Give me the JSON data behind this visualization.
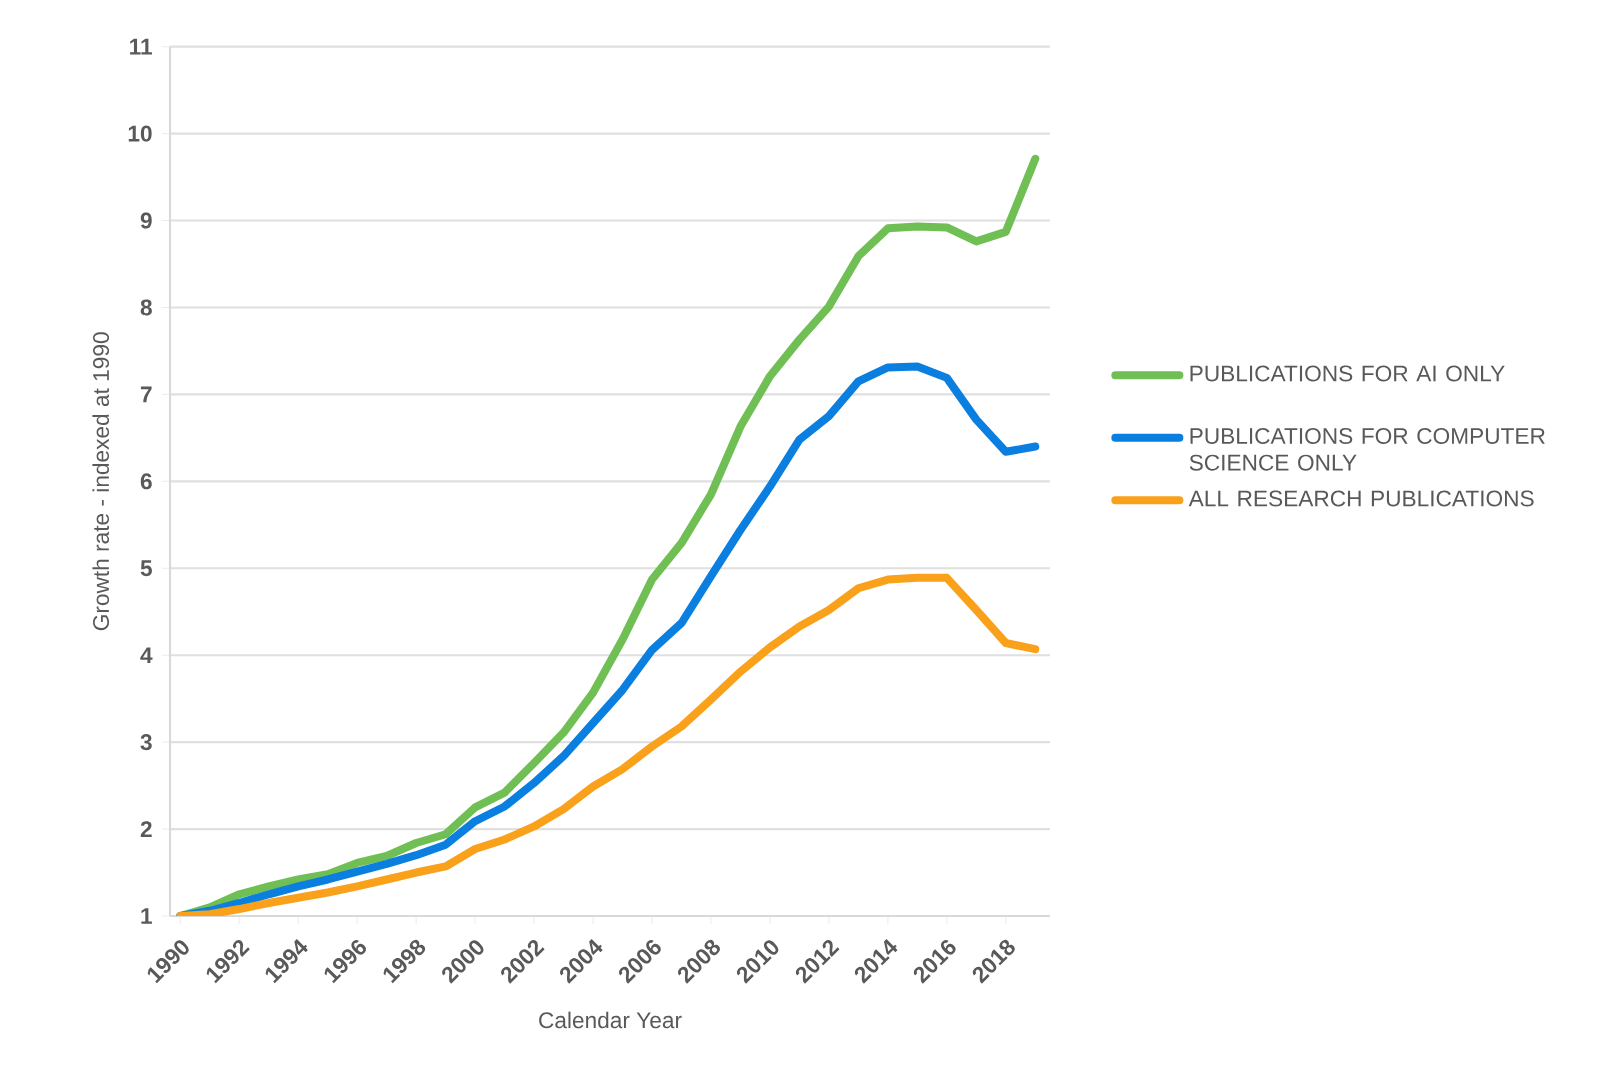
{
  "chart_data": {
    "type": "line",
    "xlabel": "Calendar Year",
    "ylabel": "Growth rate - indexed at 1990",
    "x": [
      1990,
      1991,
      1992,
      1993,
      1994,
      1995,
      1996,
      1997,
      1998,
      1999,
      2000,
      2001,
      2002,
      2003,
      2004,
      2005,
      2006,
      2007,
      2008,
      2009,
      2010,
      2011,
      2012,
      2013,
      2014,
      2015,
      2016,
      2017,
      2018,
      2019
    ],
    "series": [
      {
        "name": "PUBLICATIONS FOR AI ONLY",
        "color": "#70bf54",
        "values": [
          1.0,
          1.1,
          1.25,
          1.34,
          1.42,
          1.48,
          1.61,
          1.69,
          1.84,
          1.94,
          2.25,
          2.42,
          2.76,
          3.11,
          3.57,
          4.18,
          4.87,
          5.29,
          5.85,
          6.63,
          7.21,
          7.63,
          8.01,
          8.59,
          8.91,
          8.93,
          8.92,
          8.76,
          8.87,
          9.71
        ]
      },
      {
        "name": "PUBLICATIONS FOR COMPUTER SCIENCE ONLY",
        "color": "#0a7fdf",
        "values": [
          1.0,
          1.06,
          1.15,
          1.25,
          1.34,
          1.42,
          1.51,
          1.6,
          1.7,
          1.82,
          2.09,
          2.26,
          2.53,
          2.84,
          3.22,
          3.6,
          4.06,
          4.37,
          4.91,
          5.44,
          5.94,
          6.48,
          6.75,
          7.15,
          7.31,
          7.32,
          7.19,
          6.71,
          6.34,
          6.4
        ]
      },
      {
        "name": "ALL RESEARCH PUBLICATIONS",
        "color": "#f9a11b",
        "values": [
          1.0,
          1.02,
          1.08,
          1.15,
          1.21,
          1.27,
          1.34,
          1.42,
          1.5,
          1.57,
          1.77,
          1.88,
          2.03,
          2.23,
          2.49,
          2.69,
          2.95,
          3.18,
          3.49,
          3.81,
          4.09,
          4.33,
          4.52,
          4.77,
          4.87,
          4.89,
          4.89,
          4.52,
          4.14,
          4.07
        ]
      }
    ],
    "xlim": [
      1989.65,
      2019.5
    ],
    "ylim": [
      1,
      11
    ],
    "xticks": [
      1990,
      1992,
      1994,
      1996,
      1998,
      2000,
      2002,
      2004,
      2006,
      2008,
      2010,
      2012,
      2014,
      2016,
      2018
    ],
    "yticks": [
      1,
      2,
      3,
      4,
      5,
      6,
      7,
      8,
      9,
      10,
      11
    ],
    "grid": "y",
    "legend": "right",
    "marker": "none",
    "line_style": "solid"
  }
}
